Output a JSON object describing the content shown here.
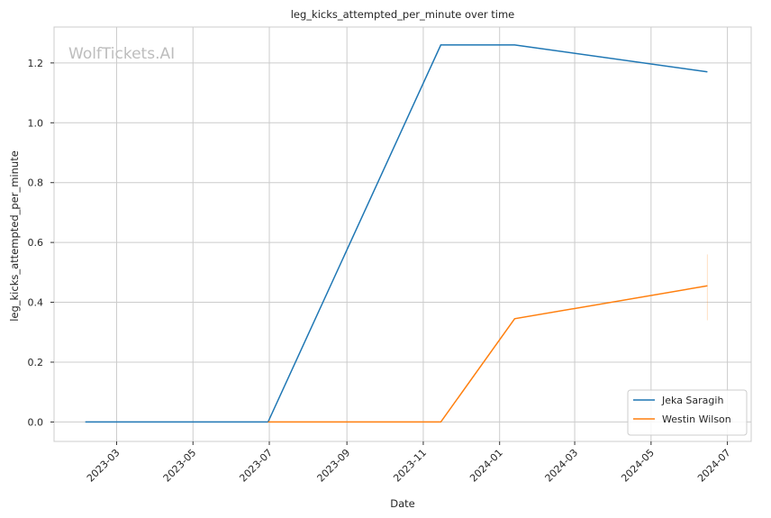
{
  "chart_data": {
    "type": "line",
    "title": "leg_kicks_attempted_per_minute over time",
    "xlabel": "Date",
    "ylabel": "leg_kicks_attempted_per_minute",
    "watermark": "WolfTickets.AI",
    "x_ticks": [
      "2023-03",
      "2023-05",
      "2023-07",
      "2023-09",
      "2023-11",
      "2024-01",
      "2024-03",
      "2024-05",
      "2024-07"
    ],
    "y_ticks": [
      "0.0",
      "0.2",
      "0.4",
      "0.6",
      "0.8",
      "1.0",
      "1.2"
    ],
    "xlim": [
      "2023-01-10",
      "2024-07-20"
    ],
    "ylim": [
      -0.065,
      1.32
    ],
    "grid": true,
    "legend_position": "lower-right",
    "series": [
      {
        "name": "Jeka Saragih",
        "color": "#1f77b4",
        "x": [
          "2023-02-04",
          "2023-06-30",
          "2023-11-15",
          "2024-01-13",
          "2024-06-15"
        ],
        "y": [
          0.0,
          0.0,
          1.26,
          1.26,
          1.17
        ]
      },
      {
        "name": "Westin Wilson",
        "color": "#ff7f0e",
        "x": [
          "2023-06-30",
          "2023-11-15",
          "2024-01-13",
          "2024-06-15"
        ],
        "y": [
          0.0,
          0.0,
          0.345,
          0.455
        ],
        "error_band": {
          "x": "2024-06-15",
          "low": 0.34,
          "high": 0.56
        }
      }
    ]
  }
}
